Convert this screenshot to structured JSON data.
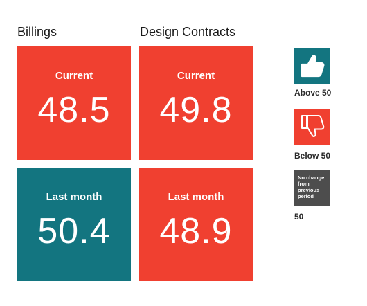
{
  "columns": {
    "billings_title": "Billings",
    "design_title": "Design Contracts"
  },
  "tiles": [
    {
      "label": "Current",
      "value": "48.5",
      "status": "below"
    },
    {
      "label": "Current",
      "value": "49.8",
      "status": "below"
    },
    {
      "label": "Last month",
      "value": "50.4",
      "status": "above"
    },
    {
      "label": "Last month",
      "value": "48.9",
      "status": "below"
    }
  ],
  "legend": {
    "above": {
      "label": "Above 50",
      "icon": "thumbs-up-icon",
      "color": "#137580"
    },
    "below": {
      "label": "Below 50",
      "icon": "thumbs-down-icon",
      "color": "#f04030"
    },
    "no_change": {
      "text": "No change from previous period",
      "label": "50",
      "color": "#4d4d4d"
    }
  },
  "colors": {
    "below": "#f04030",
    "above": "#137580",
    "no_change": "#4d4d4d"
  }
}
